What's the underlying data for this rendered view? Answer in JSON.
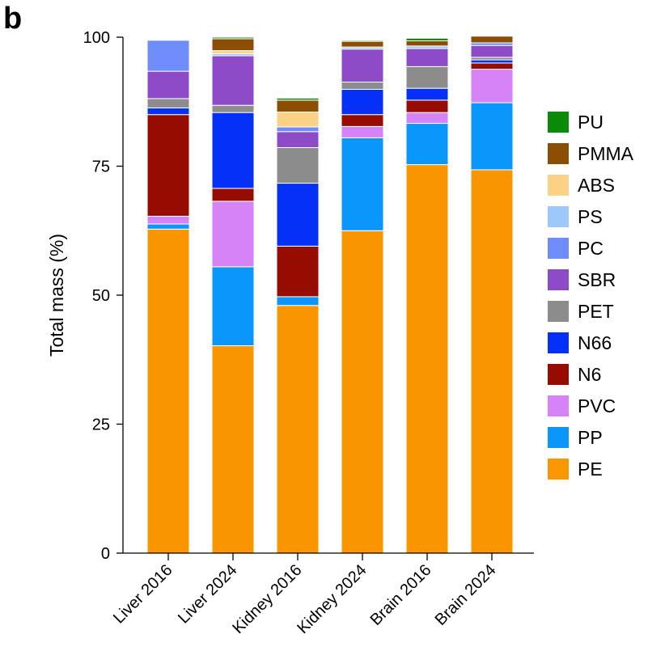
{
  "panel_label": "b",
  "chart_data": {
    "type": "bar",
    "stacked": true,
    "title": "",
    "xlabel": "",
    "ylabel": "Total mass (%)",
    "ylim": [
      0,
      100
    ],
    "yticks": [
      0,
      25,
      50,
      75,
      100
    ],
    "categories": [
      "Liver 2016",
      "Liver 2024",
      "Kidney 2016",
      "Kidney 2024",
      "Brain 2016",
      "Brain 2024"
    ],
    "legend_position": "right",
    "series": [
      {
        "name": "PE",
        "color": "#FA9600",
        "values": [
          62.8,
          40.2,
          48.0,
          62.5,
          75.3,
          74.3
        ]
      },
      {
        "name": "PP",
        "color": "#0A96FA",
        "values": [
          1.0,
          15.3,
          1.7,
          18.0,
          8.0,
          13.0
        ]
      },
      {
        "name": "PVC",
        "color": "#D683F7",
        "values": [
          1.5,
          12.7,
          0.0,
          2.2,
          2.1,
          6.5
        ]
      },
      {
        "name": "N6",
        "color": "#960C00",
        "values": [
          19.7,
          2.5,
          9.8,
          2.3,
          2.4,
          1.2
        ]
      },
      {
        "name": "N66",
        "color": "#0530F7",
        "values": [
          1.3,
          14.7,
          12.2,
          4.9,
          2.3,
          0.6
        ]
      },
      {
        "name": "PET",
        "color": "#8C8C8C",
        "values": [
          1.8,
          1.4,
          6.9,
          1.4,
          4.2,
          0.5
        ]
      },
      {
        "name": "SBR",
        "color": "#8D4BC7",
        "values": [
          5.3,
          9.6,
          3.1,
          6.4,
          3.5,
          2.3
        ]
      },
      {
        "name": "PC",
        "color": "#6E8CFA",
        "values": [
          6.0,
          0.0,
          0.9,
          0.0,
          0.0,
          0.5
        ]
      },
      {
        "name": "PS",
        "color": "#9CC8FA",
        "values": [
          0.0,
          0.4,
          0.0,
          0.4,
          0.5,
          0.0
        ]
      },
      {
        "name": "ABS",
        "color": "#FCD287",
        "values": [
          0.0,
          0.6,
          2.9,
          0.0,
          0.0,
          0.0
        ]
      },
      {
        "name": "PMMA",
        "color": "#8C4E05",
        "values": [
          0.0,
          2.3,
          2.3,
          1.1,
          1.0,
          1.3
        ]
      },
      {
        "name": "PU",
        "color": "#0A8C0A",
        "values": [
          0.0,
          0.3,
          0.4,
          0.2,
          0.5,
          0.0
        ]
      }
    ],
    "legend_order": [
      "PU",
      "PMMA",
      "ABS",
      "PS",
      "PC",
      "SBR",
      "PET",
      "N66",
      "N6",
      "PVC",
      "PP",
      "PE"
    ]
  }
}
